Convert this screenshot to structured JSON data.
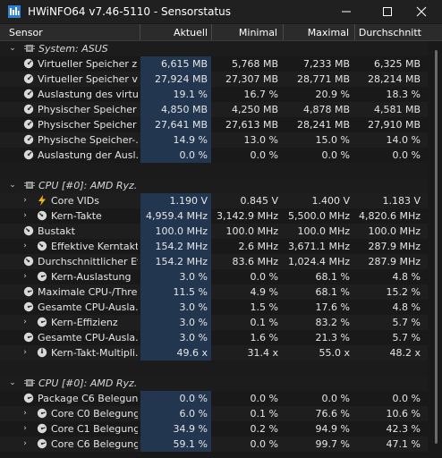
{
  "window": {
    "title": "HWiNFO64 v7.46-5110 - Sensorstatus"
  },
  "columns": [
    "Sensor",
    "Aktuell",
    "Minimal",
    "Maximal",
    "Durchschnitt"
  ],
  "rows": [
    {
      "type": "group",
      "expander": "⌄",
      "icon": "chip-icon",
      "label": "System: ASUS",
      "values": [
        "",
        "",
        "",
        ""
      ]
    },
    {
      "type": "sensor",
      "icon": "memory-gauge-icon",
      "label": "Virtueller Speicher z...",
      "values": [
        "6,615 MB",
        "5,768 MB",
        "7,233 MB",
        "6,325 MB"
      ]
    },
    {
      "type": "sensor",
      "icon": "memory-gauge-icon",
      "label": "Virtueller Speicher v...",
      "values": [
        "27,924 MB",
        "27,307 MB",
        "28,771 MB",
        "28,214 MB"
      ]
    },
    {
      "type": "sensor",
      "icon": "memory-gauge-icon",
      "label": "Auslastung des virtu...",
      "values": [
        "19.1 %",
        "16.7 %",
        "20.9 %",
        "18.3 %"
      ]
    },
    {
      "type": "sensor",
      "icon": "memory-gauge-icon",
      "label": "Physischer Speicher ...",
      "values": [
        "4,850 MB",
        "4,250 MB",
        "4,878 MB",
        "4,581 MB"
      ]
    },
    {
      "type": "sensor",
      "icon": "memory-gauge-icon",
      "label": "Physischer Speicher ...",
      "values": [
        "27,641 MB",
        "27,613 MB",
        "28,241 MB",
        "27,910 MB"
      ]
    },
    {
      "type": "sensor",
      "icon": "memory-gauge-icon",
      "label": "Physische Speicher-...",
      "values": [
        "14.9 %",
        "13.0 %",
        "15.0 %",
        "14.0 %"
      ]
    },
    {
      "type": "sensor",
      "icon": "memory-gauge-icon",
      "label": "Auslastung der Ausl...",
      "values": [
        "0.0 %",
        "0.0 %",
        "0.0 %",
        "0.0 %"
      ]
    },
    {
      "type": "spacer"
    },
    {
      "type": "group",
      "expander": "⌄",
      "icon": "chip-icon",
      "label": "CPU [#0]: AMD Ryz...",
      "values": [
        "",
        "",
        "",
        ""
      ]
    },
    {
      "type": "sensor",
      "expander": "›",
      "icon": "voltage-bolt-icon",
      "label": "Core VIDs",
      "values": [
        "1.190 V",
        "0.845 V",
        "1.400 V",
        "1.183 V"
      ]
    },
    {
      "type": "sensor",
      "expander": "›",
      "icon": "clock-gauge-icon",
      "label": "Kern-Takte",
      "values": [
        "4,959.4 MHz",
        "3,142.9 MHz",
        "5,500.0 MHz",
        "4,820.6 MHz"
      ]
    },
    {
      "type": "sensor",
      "icon": "clock-gauge-icon",
      "label": "Bustakt",
      "values": [
        "100.0 MHz",
        "100.0 MHz",
        "100.0 MHz",
        "100.0 MHz"
      ]
    },
    {
      "type": "sensor",
      "expander": "›",
      "icon": "clock-gauge-icon",
      "label": "Effektive Kerntakte",
      "values": [
        "154.2 MHz",
        "2.6 MHz",
        "3,671.1 MHz",
        "287.9 MHz"
      ]
    },
    {
      "type": "sensor",
      "icon": "clock-gauge-icon",
      "label": "Durchschnittlicher Ef...",
      "values": [
        "154.2 MHz",
        "83.6 MHz",
        "1,024.4 MHz",
        "287.9 MHz"
      ]
    },
    {
      "type": "sensor",
      "expander": "›",
      "icon": "usage-gauge-icon",
      "label": "Kern-Auslastung",
      "values": [
        "3.0 %",
        "0.0 %",
        "68.1 %",
        "4.8 %"
      ]
    },
    {
      "type": "sensor",
      "icon": "usage-gauge-icon",
      "label": "Maximale CPU-/Thre...",
      "values": [
        "11.5 %",
        "4.9 %",
        "68.1 %",
        "15.2 %"
      ]
    },
    {
      "type": "sensor",
      "icon": "usage-gauge-icon",
      "label": "Gesamte CPU-Ausla...",
      "values": [
        "3.0 %",
        "1.5 %",
        "17.6 %",
        "4.8 %"
      ]
    },
    {
      "type": "sensor",
      "expander": "›",
      "icon": "usage-gauge-icon",
      "label": "Kern-Effizienz",
      "values": [
        "3.0 %",
        "0.1 %",
        "83.2 %",
        "5.7 %"
      ]
    },
    {
      "type": "sensor",
      "icon": "usage-gauge-icon",
      "label": "Gesamte CPU-Ausla...",
      "values": [
        "3.0 %",
        "1.6 %",
        "21.3 %",
        "5.7 %"
      ]
    },
    {
      "type": "sensor",
      "expander": "›",
      "icon": "multiplier-gauge-icon",
      "label": "Kern-Takt-Multipli...",
      "values": [
        "49.6 x",
        "31.4 x",
        "55.0 x",
        "48.2 x"
      ]
    },
    {
      "type": "spacer"
    },
    {
      "type": "group",
      "expander": "⌄",
      "icon": "chip-icon",
      "label": "CPU [#0]: AMD Ryz...",
      "values": [
        "",
        "",
        "",
        ""
      ]
    },
    {
      "type": "sensor",
      "icon": "usage-gauge-icon",
      "label": "Package C6 Belegung",
      "values": [
        "0.0 %",
        "0.0 %",
        "0.0 %",
        "0.0 %"
      ]
    },
    {
      "type": "sensor",
      "expander": "›",
      "icon": "usage-gauge-icon",
      "label": "Core C0 Belegung",
      "values": [
        "6.0 %",
        "0.1 %",
        "76.6 %",
        "10.6 %"
      ]
    },
    {
      "type": "sensor",
      "expander": "›",
      "icon": "usage-gauge-icon",
      "label": "Core C1 Belegung",
      "values": [
        "34.9 %",
        "0.2 %",
        "94.9 %",
        "42.3 %"
      ]
    },
    {
      "type": "sensor",
      "expander": "›",
      "icon": "usage-gauge-icon",
      "label": "Core C6 Belegung",
      "values": [
        "59.1 %",
        "0.0 %",
        "99.7 %",
        "47.1 %"
      ]
    }
  ],
  "colors": {
    "highlight": "#23364f",
    "background": "#191919",
    "header": "#2b2b2b"
  }
}
